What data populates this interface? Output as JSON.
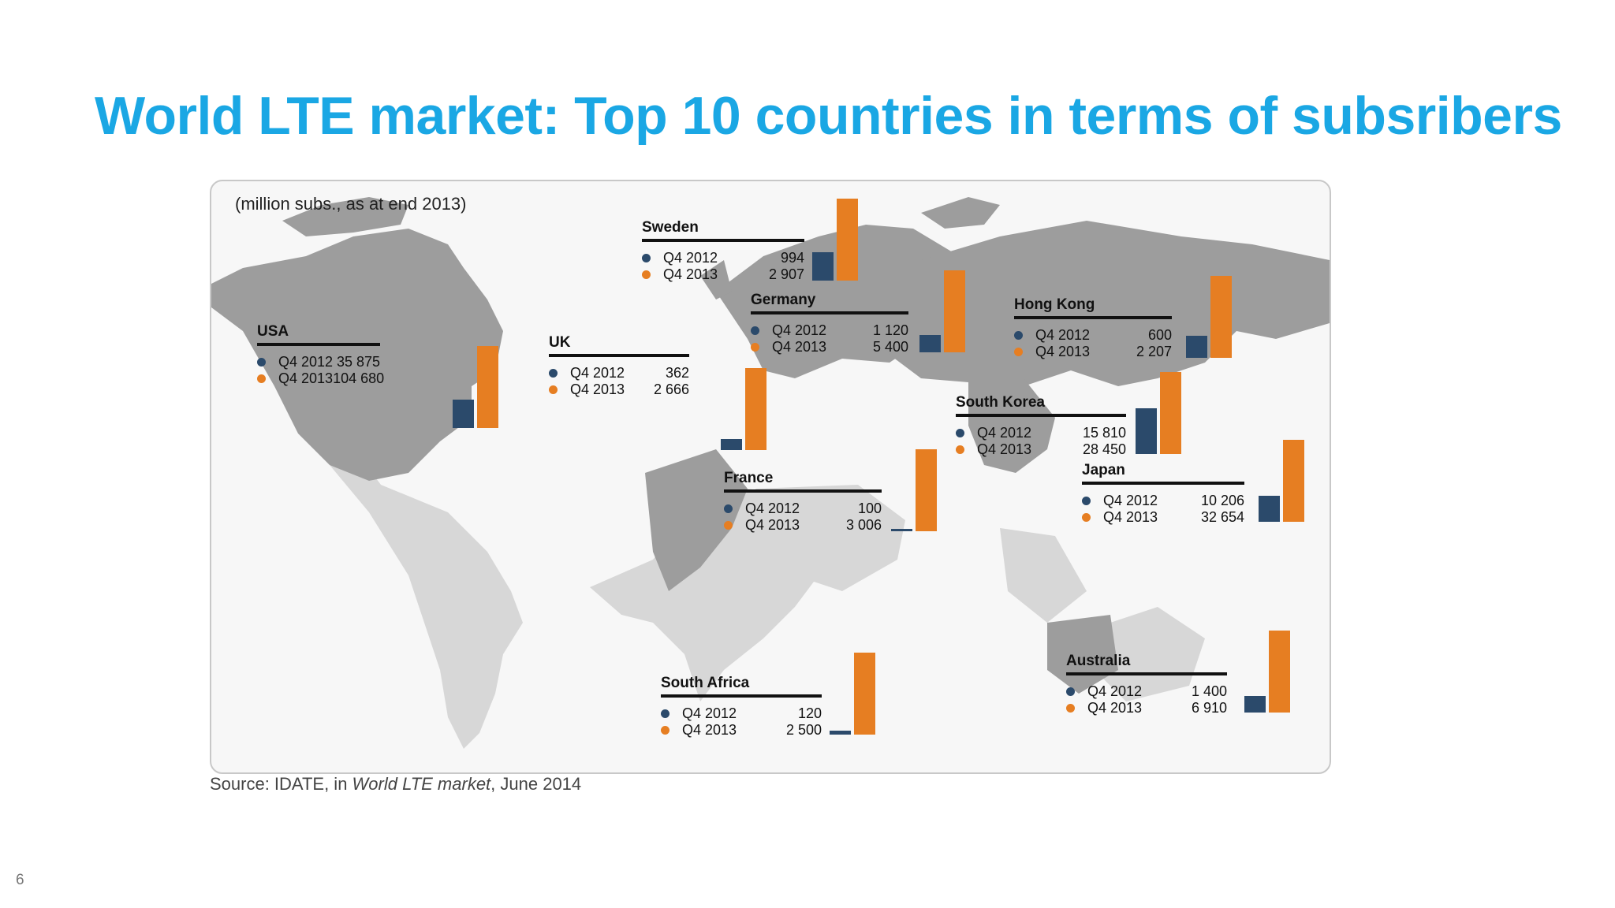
{
  "title": "World LTE market: Top 10 countries in terms of subsribers",
  "units_note": "(million subs., as at end 2013)",
  "source": {
    "prefix": "Source: IDATE, in ",
    "publication": "World LTE market",
    "suffix": ", June 2014"
  },
  "page_number": "6",
  "colors": {
    "q4_2012": "#2b4a6b",
    "q4_2013": "#e67e22",
    "title": "#1aa7e4"
  },
  "chart_data": {
    "type": "bar",
    "series": [
      {
        "name": "Q4 2012"
      },
      {
        "name": "Q4 2013"
      }
    ],
    "countries": [
      {
        "name": "USA",
        "labels": [
          "Q4 2012",
          "Q4 2013"
        ],
        "display": [
          "35 875",
          "104 680"
        ],
        "values": [
          35875,
          104680
        ]
      },
      {
        "name": "UK",
        "labels": [
          "Q4 2012",
          "Q4 2013"
        ],
        "display": [
          "362",
          "2 666"
        ],
        "values": [
          362,
          2666
        ]
      },
      {
        "name": "Sweden",
        "labels": [
          "Q4 2012",
          "Q4 2013"
        ],
        "display": [
          "994",
          "2 907"
        ],
        "values": [
          994,
          2907
        ]
      },
      {
        "name": "Germany",
        "labels": [
          "Q4 2012",
          "Q4 2013"
        ],
        "display": [
          "1 120",
          "5 400"
        ],
        "values": [
          1120,
          5400
        ]
      },
      {
        "name": "France",
        "labels": [
          "Q4 2012",
          "Q4 2013"
        ],
        "display": [
          "100",
          "3 006"
        ],
        "values": [
          100,
          3006
        ]
      },
      {
        "name": "Hong Kong",
        "labels": [
          "Q4 2012",
          "Q4 2013"
        ],
        "display": [
          "600",
          "2 207"
        ],
        "values": [
          600,
          2207
        ]
      },
      {
        "name": "South Korea",
        "labels": [
          "Q4 2012",
          "Q4 2013"
        ],
        "display": [
          "15 810",
          "28 450"
        ],
        "values": [
          15810,
          28450
        ]
      },
      {
        "name": "Japan",
        "labels": [
          "Q4 2012",
          "Q4 2013"
        ],
        "display": [
          "10 206",
          "32 654"
        ],
        "values": [
          10206,
          32654
        ]
      },
      {
        "name": "South Africa",
        "labels": [
          "Q4 2012",
          "Q4 2013"
        ],
        "display": [
          "120",
          "2 500"
        ],
        "values": [
          120,
          2500
        ]
      },
      {
        "name": "Australia",
        "labels": [
          "Q4 2012",
          "Q4 2013"
        ],
        "display": [
          "1 400",
          "6 910"
        ],
        "values": [
          1400,
          6910
        ]
      }
    ]
  }
}
